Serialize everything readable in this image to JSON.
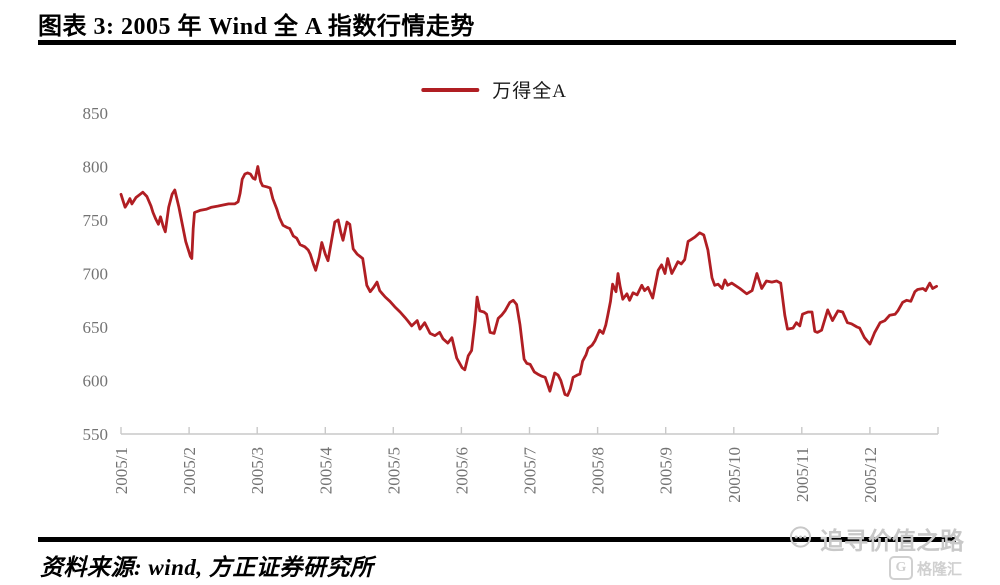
{
  "page": {
    "title": "图表 3: 2005 年 Wind 全 A 指数行情走势",
    "source_note": "资料来源: wind, 方正证券研究所"
  },
  "watermark": {
    "text": "追寻价值之路",
    "brand": "格隆汇",
    "brand_initial": "G"
  },
  "colors": {
    "accent_red": "#B01E23",
    "axis_text": "#737373",
    "axis_line": "#c9c9c9",
    "watermark_gray": "#c8c8c8"
  },
  "chart_data": {
    "type": "line",
    "title": "2005 年 Wind 全 A 指数行情走势",
    "legend": [
      "万得全A"
    ],
    "legend_position": "top-center",
    "grid": false,
    "x_unit": "decimal month of 2005 (1.0 = Jan 1, 13.0 = Dec 31)",
    "xlim": [
      1,
      13
    ],
    "ylim": [
      550,
      850
    ],
    "yticks": [
      550,
      600,
      650,
      700,
      750,
      800,
      850
    ],
    "xtick_positions": [
      1,
      2,
      3,
      4,
      5,
      6,
      7,
      8,
      9,
      10,
      11,
      12
    ],
    "xtick_labels": [
      "2005/1",
      "2005/2",
      "2005/3",
      "2005/4",
      "2005/5",
      "2005/6",
      "2005/7",
      "2005/8",
      "2005/9",
      "2005/10",
      "2005/11",
      "2005/12"
    ],
    "series": [
      {
        "name": "万得全A",
        "color": "#B01E23",
        "points": [
          [
            1.0,
            774
          ],
          [
            1.03,
            768
          ],
          [
            1.06,
            762
          ],
          [
            1.1,
            766
          ],
          [
            1.13,
            770
          ],
          [
            1.16,
            765
          ],
          [
            1.22,
            771
          ],
          [
            1.28,
            774
          ],
          [
            1.32,
            776
          ],
          [
            1.38,
            772
          ],
          [
            1.44,
            763
          ],
          [
            1.47,
            757
          ],
          [
            1.51,
            751
          ],
          [
            1.55,
            746
          ],
          [
            1.58,
            753
          ],
          [
            1.62,
            744
          ],
          [
            1.65,
            739
          ],
          [
            1.7,
            762
          ],
          [
            1.75,
            774
          ],
          [
            1.79,
            778
          ],
          [
            1.85,
            762
          ],
          [
            1.9,
            746
          ],
          [
            1.95,
            730
          ],
          [
            2.02,
            716
          ],
          [
            2.04,
            714
          ],
          [
            2.06,
            742
          ],
          [
            2.08,
            757
          ],
          [
            2.16,
            759
          ],
          [
            2.25,
            760
          ],
          [
            2.33,
            762
          ],
          [
            2.42,
            763
          ],
          [
            2.5,
            764
          ],
          [
            2.58,
            765
          ],
          [
            2.67,
            765
          ],
          [
            2.72,
            767
          ],
          [
            2.75,
            775
          ],
          [
            2.78,
            788
          ],
          [
            2.82,
            793
          ],
          [
            2.86,
            794
          ],
          [
            2.9,
            793
          ],
          [
            2.94,
            789
          ],
          [
            2.97,
            788
          ],
          [
            3.01,
            800
          ],
          [
            3.05,
            786
          ],
          [
            3.08,
            782
          ],
          [
            3.14,
            781
          ],
          [
            3.19,
            780
          ],
          [
            3.23,
            770
          ],
          [
            3.29,
            760
          ],
          [
            3.33,
            752
          ],
          [
            3.38,
            745
          ],
          [
            3.44,
            743
          ],
          [
            3.48,
            742
          ],
          [
            3.53,
            735
          ],
          [
            3.58,
            733
          ],
          [
            3.63,
            727
          ],
          [
            3.7,
            725
          ],
          [
            3.75,
            722
          ],
          [
            3.78,
            718
          ],
          [
            3.83,
            708
          ],
          [
            3.86,
            703
          ],
          [
            3.91,
            715
          ],
          [
            3.95,
            729
          ],
          [
            4.0,
            718
          ],
          [
            4.04,
            712
          ],
          [
            4.09,
            730
          ],
          [
            4.14,
            748
          ],
          [
            4.19,
            750
          ],
          [
            4.23,
            738
          ],
          [
            4.26,
            731
          ],
          [
            4.32,
            748
          ],
          [
            4.36,
            746
          ],
          [
            4.41,
            723
          ],
          [
            4.47,
            718
          ],
          [
            4.51,
            716
          ],
          [
            4.55,
            714
          ],
          [
            4.61,
            689
          ],
          [
            4.66,
            683
          ],
          [
            4.71,
            687
          ],
          [
            4.76,
            692
          ],
          [
            4.8,
            684
          ],
          [
            4.84,
            681
          ],
          [
            4.88,
            678
          ],
          [
            4.95,
            674
          ],
          [
            5.02,
            669
          ],
          [
            5.1,
            664
          ],
          [
            5.17,
            659
          ],
          [
            5.21,
            656
          ],
          [
            5.27,
            651
          ],
          [
            5.35,
            656
          ],
          [
            5.39,
            648
          ],
          [
            5.46,
            654
          ],
          [
            5.54,
            644
          ],
          [
            5.61,
            642
          ],
          [
            5.68,
            645
          ],
          [
            5.73,
            639
          ],
          [
            5.8,
            635
          ],
          [
            5.86,
            640
          ],
          [
            5.93,
            621
          ],
          [
            6.01,
            612
          ],
          [
            6.05,
            610
          ],
          [
            6.1,
            623
          ],
          [
            6.15,
            628
          ],
          [
            6.2,
            655
          ],
          [
            6.23,
            678
          ],
          [
            6.27,
            665
          ],
          [
            6.33,
            664
          ],
          [
            6.37,
            662
          ],
          [
            6.42,
            645
          ],
          [
            6.48,
            644
          ],
          [
            6.54,
            658
          ],
          [
            6.59,
            661
          ],
          [
            6.64,
            665
          ],
          [
            6.71,
            673
          ],
          [
            6.76,
            675
          ],
          [
            6.81,
            671
          ],
          [
            6.86,
            652
          ],
          [
            6.92,
            620
          ],
          [
            6.96,
            616
          ],
          [
            7.01,
            615
          ],
          [
            7.07,
            608
          ],
          [
            7.12,
            606
          ],
          [
            7.18,
            604
          ],
          [
            7.23,
            603
          ],
          [
            7.3,
            590
          ],
          [
            7.37,
            607
          ],
          [
            7.42,
            605
          ],
          [
            7.46,
            600
          ],
          [
            7.52,
            587
          ],
          [
            7.56,
            586
          ],
          [
            7.6,
            592
          ],
          [
            7.64,
            603
          ],
          [
            7.7,
            605
          ],
          [
            7.74,
            606
          ],
          [
            7.78,
            618
          ],
          [
            7.83,
            624
          ],
          [
            7.86,
            630
          ],
          [
            7.92,
            633
          ],
          [
            7.96,
            637
          ],
          [
            8.03,
            647
          ],
          [
            8.08,
            644
          ],
          [
            8.12,
            652
          ],
          [
            8.15,
            661
          ],
          [
            8.19,
            674
          ],
          [
            8.22,
            690
          ],
          [
            8.27,
            683
          ],
          [
            8.3,
            700
          ],
          [
            8.33,
            688
          ],
          [
            8.37,
            676
          ],
          [
            8.43,
            681
          ],
          [
            8.47,
            675
          ],
          [
            8.52,
            682
          ],
          [
            8.58,
            680
          ],
          [
            8.65,
            689
          ],
          [
            8.69,
            684
          ],
          [
            8.74,
            687
          ],
          [
            8.81,
            677
          ],
          [
            8.89,
            703
          ],
          [
            8.94,
            708
          ],
          [
            8.99,
            700
          ],
          [
            9.03,
            714
          ],
          [
            9.09,
            700
          ],
          [
            9.14,
            706
          ],
          [
            9.18,
            711
          ],
          [
            9.23,
            709
          ],
          [
            9.28,
            713
          ],
          [
            9.33,
            730
          ],
          [
            9.38,
            732
          ],
          [
            9.43,
            734
          ],
          [
            9.5,
            738
          ],
          [
            9.56,
            736
          ],
          [
            9.62,
            722
          ],
          [
            9.68,
            696
          ],
          [
            9.72,
            689
          ],
          [
            9.77,
            690
          ],
          [
            9.83,
            686
          ],
          [
            9.87,
            694
          ],
          [
            9.91,
            689
          ],
          [
            9.97,
            691
          ],
          [
            10.09,
            686
          ],
          [
            10.19,
            681
          ],
          [
            10.27,
            684
          ],
          [
            10.34,
            700
          ],
          [
            10.41,
            686
          ],
          [
            10.48,
            693
          ],
          [
            10.56,
            692
          ],
          [
            10.63,
            693
          ],
          [
            10.69,
            691
          ],
          [
            10.75,
            661
          ],
          [
            10.79,
            648
          ],
          [
            10.87,
            649
          ],
          [
            10.92,
            654
          ],
          [
            10.97,
            651
          ],
          [
            11.01,
            662
          ],
          [
            11.09,
            664
          ],
          [
            11.15,
            664
          ],
          [
            11.19,
            646
          ],
          [
            11.23,
            645
          ],
          [
            11.29,
            647
          ],
          [
            11.38,
            666
          ],
          [
            11.45,
            656
          ],
          [
            11.53,
            665
          ],
          [
            11.6,
            664
          ],
          [
            11.67,
            654
          ],
          [
            11.73,
            653
          ],
          [
            11.81,
            650
          ],
          [
            11.85,
            649
          ],
          [
            11.92,
            640
          ],
          [
            12.0,
            634
          ],
          [
            12.07,
            645
          ],
          [
            12.15,
            654
          ],
          [
            12.22,
            656
          ],
          [
            12.29,
            661
          ],
          [
            12.37,
            662
          ],
          [
            12.41,
            665
          ],
          [
            12.48,
            673
          ],
          [
            12.54,
            675
          ],
          [
            12.6,
            674
          ],
          [
            12.66,
            683
          ],
          [
            12.7,
            685
          ],
          [
            12.78,
            686
          ],
          [
            12.82,
            684
          ],
          [
            12.88,
            691
          ],
          [
            12.92,
            686
          ],
          [
            12.98,
            688
          ]
        ]
      }
    ]
  }
}
